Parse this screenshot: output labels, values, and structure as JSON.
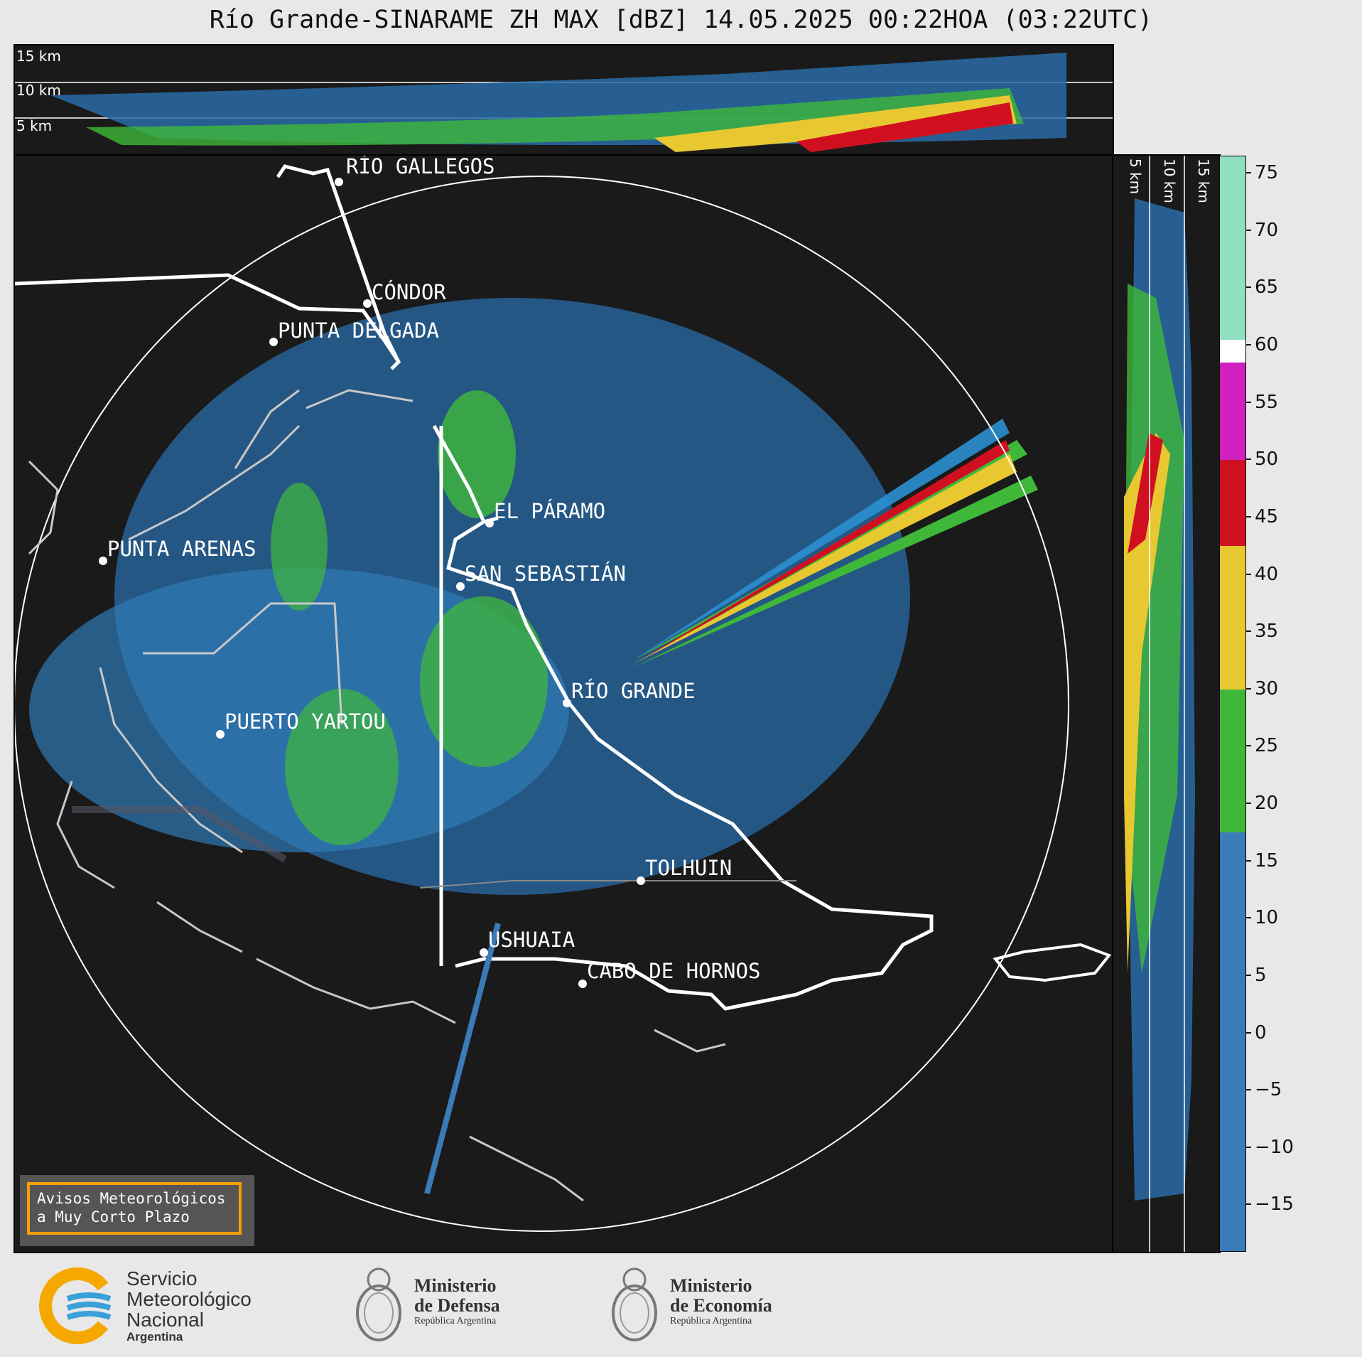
{
  "title": "Río Grande-SINARAME ZH MAX [dBZ] 14.05.2025 00:22HOA (03:22UTC)",
  "top_panel": {
    "height_labels": [
      "15 km",
      "10 km",
      "5 km"
    ]
  },
  "side_panel": {
    "height_labels": [
      "5 km",
      "10 km",
      "15 km"
    ]
  },
  "cities": [
    {
      "name": "RÍO GALLEGOS"
    },
    {
      "name": "CÓNDOR"
    },
    {
      "name": "PUNTA DELGADA"
    },
    {
      "name": "EL PÁRAMO"
    },
    {
      "name": "PUNTA ARENAS"
    },
    {
      "name": "SAN SEBASTIÁN"
    },
    {
      "name": "RÍO GRANDE"
    },
    {
      "name": "PUERTO YARTOU"
    },
    {
      "name": "TOLHUIN"
    },
    {
      "name": "USHUAIA"
    },
    {
      "name": "CABO DE HORNOS"
    }
  ],
  "colorbar": {
    "unit": "dBZ",
    "ticks": [
      "75",
      "70",
      "65",
      "60",
      "55",
      "50",
      "45",
      "40",
      "35",
      "30",
      "25",
      "20",
      "15",
      "10",
      "5",
      "0",
      "−5",
      "−10",
      "−15"
    ],
    "range": [
      -19,
      76.5
    ],
    "bands": [
      {
        "from": -19,
        "to": 17.5,
        "color": "#3a7bb8"
      },
      {
        "from": 17.5,
        "to": 30,
        "color": "#3fb83a"
      },
      {
        "from": 30,
        "to": 42.5,
        "color": "#e8c830"
      },
      {
        "from": 42.5,
        "to": 50,
        "color": "#d01020"
      },
      {
        "from": 50,
        "to": 58.5,
        "color": "#d020c0"
      },
      {
        "from": 58.5,
        "to": 60.5,
        "color": "#ffffff"
      },
      {
        "from": 60.5,
        "to": 76.5,
        "color": "#90e0c0"
      }
    ]
  },
  "alert_box": {
    "line1": "Avisos Meteorológicos",
    "line2": "a Muy Corto Plazo"
  },
  "logos": {
    "smn": {
      "line1": "Servicio",
      "line2": "Meteorológico",
      "line3": "Nacional",
      "line4": "Argentina"
    },
    "defensa": {
      "line1": "Ministerio",
      "line2": "de Defensa",
      "line3": "República Argentina"
    },
    "economia": {
      "line1": "Ministerio",
      "line2": "de Economía",
      "line3": "República Argentina"
    }
  }
}
